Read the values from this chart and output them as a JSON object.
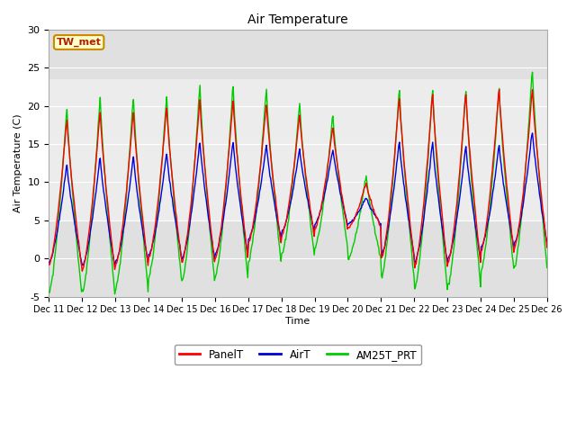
{
  "title": "Air Temperature",
  "ylabel": "Air Temperature (C)",
  "xlabel": "Time",
  "ylim": [
    -5,
    30
  ],
  "yticks": [
    -5,
    0,
    5,
    10,
    15,
    20,
    25,
    30
  ],
  "xtick_labels": [
    "Dec 11",
    "Dec 12",
    "Dec 13",
    "Dec 14",
    "Dec 15",
    "Dec 16",
    "Dec 17",
    "Dec 18",
    "Dec 19",
    "Dec 20",
    "Dec 21",
    "Dec 22",
    "Dec 23",
    "Dec 24",
    "Dec 25",
    "Dec 26"
  ],
  "panel_color": "#ff0000",
  "air_color": "#0000dd",
  "am25_color": "#00cc00",
  "legend_label_panel": "PanelT",
  "legend_label_air": "AirT",
  "legend_label_am25": "AM25T_PRT",
  "station_label": "TW_met",
  "bg_inner_color": "#e0e0e0",
  "band_low": 5.0,
  "band_high": 23.5,
  "linewidth": 1.0,
  "daily_mins_panel": [
    -1.0,
    -1.5,
    -1.0,
    0.0,
    -0.5,
    0.0,
    2.0,
    3.0,
    4.0,
    4.0,
    0.0,
    -1.0,
    -0.5,
    1.0,
    1.5,
    2.5
  ],
  "daily_maxs_panel": [
    18.5,
    19.5,
    19.5,
    20.0,
    21.0,
    21.0,
    20.5,
    19.0,
    17.5,
    10.0,
    21.5,
    22.0,
    22.0,
    22.5,
    22.5,
    22.5
  ],
  "daily_mins_air": [
    -0.5,
    -1.0,
    -0.5,
    0.5,
    -0.0,
    0.5,
    2.5,
    3.5,
    4.5,
    4.5,
    0.5,
    -0.5,
    0.0,
    1.5,
    2.0,
    3.0
  ],
  "daily_maxs_air": [
    12.5,
    13.5,
    13.5,
    14.0,
    15.5,
    15.5,
    15.0,
    14.5,
    14.5,
    8.0,
    15.5,
    15.5,
    15.0,
    15.0,
    17.0,
    17.0
  ],
  "daily_mins_am25": [
    -4.5,
    -4.5,
    -4.0,
    -2.5,
    -3.0,
    -2.5,
    -0.5,
    0.5,
    1.5,
    0.0,
    -2.5,
    -4.0,
    -3.5,
    -1.5,
    -1.0,
    0.5
  ],
  "daily_maxs_am25": [
    20.0,
    21.5,
    21.5,
    21.5,
    23.0,
    23.0,
    22.5,
    20.5,
    19.0,
    11.0,
    22.5,
    22.5,
    22.5,
    22.5,
    25.0,
    24.5
  ],
  "peak_hour": 0.58,
  "n_days": 15,
  "hours_per_day": 48
}
